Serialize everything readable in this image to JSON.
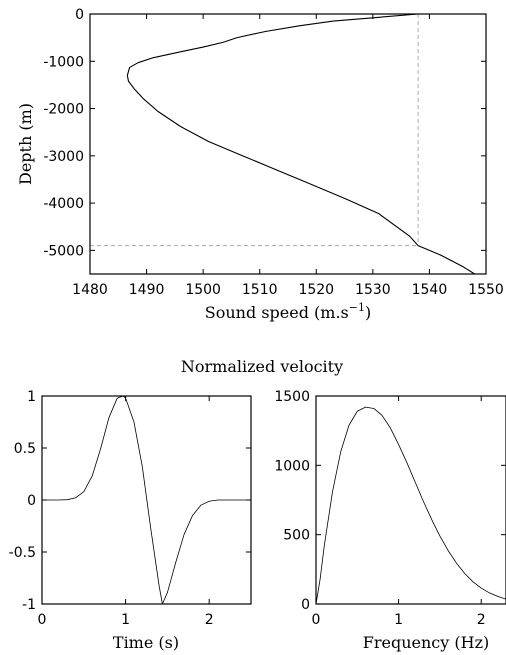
{
  "colors": {
    "line": "#000000",
    "guide": "#aaaaaa",
    "background": "#ffffff"
  },
  "figure": {
    "section_title": "Normalized velocity"
  },
  "chart_data": [
    {
      "type": "line",
      "title": "",
      "xlabel": "Sound speed (m.s",
      "xlabel_sup": "−1",
      "xlabel_close": ")",
      "ylabel": "Depth (m)",
      "xlim": [
        1480,
        1550
      ],
      "ylim": [
        -5500,
        0
      ],
      "xticks": [
        "1480",
        "1490",
        "1500",
        "1510",
        "1520",
        "1530",
        "1540",
        "1550"
      ],
      "yticks": [
        "0",
        "-1000",
        "-2000",
        "-3000",
        "-4000",
        "-5000"
      ],
      "grid": false,
      "series": [
        {
          "x": [
            1538.0,
            1530.0,
            1523.0,
            1517.0,
            1511.0,
            1506.0,
            1503.5,
            1500.0,
            1496.0,
            1491.0,
            1488.5,
            1487.0,
            1486.6,
            1486.8,
            1487.8,
            1489.5,
            1492.0,
            1496.0,
            1501.0,
            1507.0,
            1513.0,
            1519.0,
            1525.0,
            1531.0,
            1536.5,
            1538.0,
            1542.0,
            1546.0,
            1548.0
          ],
          "y": [
            0,
            -80,
            -150,
            -250,
            -370,
            -500,
            -600,
            -700,
            -800,
            -930,
            -1030,
            -1130,
            -1300,
            -1420,
            -1580,
            -1800,
            -2060,
            -2380,
            -2700,
            -3000,
            -3300,
            -3600,
            -3900,
            -4220,
            -4700,
            -4900,
            -5100,
            -5350,
            -5500
          ]
        }
      ],
      "reference_lines": [
        {
          "orientation": "vertical",
          "x": 1538.0,
          "from_y": 0,
          "to_y": -4900
        },
        {
          "orientation": "horizontal",
          "y": -4900,
          "from_x": 1480,
          "to_x": 1538.0
        }
      ]
    },
    {
      "type": "line",
      "title": "",
      "xlabel": "Time (s)",
      "ylabel": "",
      "xlim": [
        0,
        2.5
      ],
      "ylim": [
        -1,
        1
      ],
      "xticks": [
        "0",
        "1",
        "2"
      ],
      "yticks": [
        "1",
        "0.5",
        "0",
        "-0.5",
        "-1"
      ],
      "grid": false,
      "series": [
        {
          "x": [
            0.0,
            0.1,
            0.2,
            0.3,
            0.4,
            0.5,
            0.6,
            0.7,
            0.8,
            0.9,
            0.97,
            1.0,
            1.1,
            1.2,
            1.3,
            1.4,
            1.44,
            1.5,
            1.6,
            1.7,
            1.8,
            1.9,
            2.0,
            2.1,
            2.2,
            2.3,
            2.4,
            2.5
          ],
          "y": [
            0.0,
            0.0,
            0.0,
            0.003,
            0.02,
            0.08,
            0.23,
            0.49,
            0.79,
            0.98,
            1.0,
            0.98,
            0.75,
            0.32,
            -0.27,
            -0.82,
            -1.0,
            -0.89,
            -0.6,
            -0.33,
            -0.15,
            -0.05,
            -0.012,
            0.0,
            0.0,
            0.0,
            0.0,
            0.0
          ]
        }
      ]
    },
    {
      "type": "line",
      "title": "",
      "xlabel": "Frequency (Hz)",
      "ylabel": "",
      "xlim": [
        0,
        2.3
      ],
      "ylim": [
        0,
        1500
      ],
      "xticks": [
        "0",
        "1",
        "2"
      ],
      "yticks": [
        "1500",
        "1000",
        "500",
        "0"
      ],
      "grid": false,
      "series": [
        {
          "x": [
            0.0,
            0.05,
            0.1,
            0.2,
            0.3,
            0.4,
            0.5,
            0.6,
            0.7,
            0.8,
            0.9,
            1.0,
            1.1,
            1.2,
            1.3,
            1.4,
            1.5,
            1.6,
            1.7,
            1.8,
            1.9,
            2.0,
            2.1,
            2.2,
            2.3
          ],
          "y": [
            0,
            180,
            420,
            810,
            1100,
            1290,
            1390,
            1420,
            1410,
            1360,
            1270,
            1150,
            1020,
            880,
            740,
            610,
            490,
            385,
            295,
            220,
            160,
            115,
            80,
            55,
            35
          ]
        }
      ]
    }
  ]
}
